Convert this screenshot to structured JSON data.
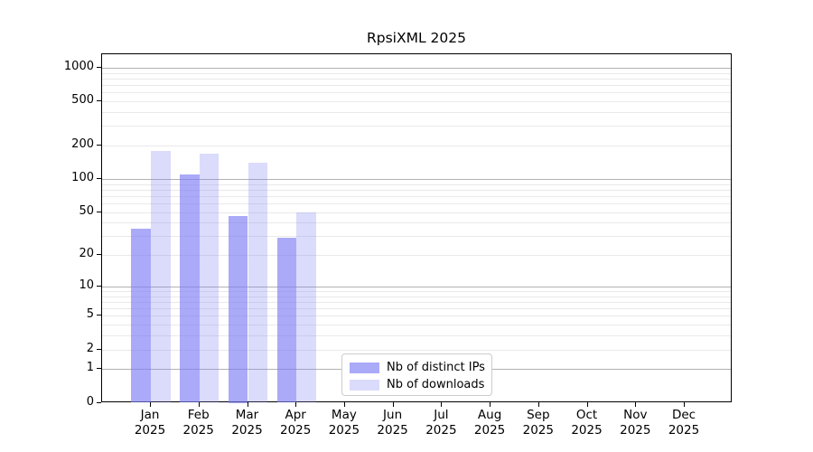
{
  "chart_data": {
    "type": "bar",
    "title": "RpsiXML 2025",
    "x_year": "2025",
    "categories": [
      "Jan",
      "Feb",
      "Mar",
      "Apr",
      "May",
      "Jun",
      "Jul",
      "Aug",
      "Sep",
      "Oct",
      "Nov",
      "Dec"
    ],
    "series": [
      {
        "name": "Nb of distinct IPs",
        "key": "distinct-ips",
        "color": "#7c7cf5",
        "alpha": 0.65,
        "values": [
          35,
          110,
          46,
          29,
          0,
          0,
          0,
          0,
          0,
          0,
          0,
          0
        ]
      },
      {
        "name": "Nb of downloads",
        "key": "downloads",
        "color": "#7c7cf5",
        "alpha": 0.28,
        "values": [
          180,
          170,
          140,
          50,
          0,
          0,
          0,
          0,
          0,
          0,
          0,
          0
        ]
      }
    ],
    "y_ticks": [
      0,
      1,
      2,
      5,
      10,
      20,
      50,
      100,
      200,
      500,
      1000
    ],
    "y_scale": "log10(1+v)",
    "ylim": [
      0,
      1320
    ],
    "grid": true,
    "legend_position": "bottom-center",
    "colors": {
      "grid_major": "#b2b2b2",
      "grid_minor": "#e9e9e9",
      "axis": "#000000",
      "background": "#ffffff",
      "legend_border": "#cccccc"
    }
  }
}
